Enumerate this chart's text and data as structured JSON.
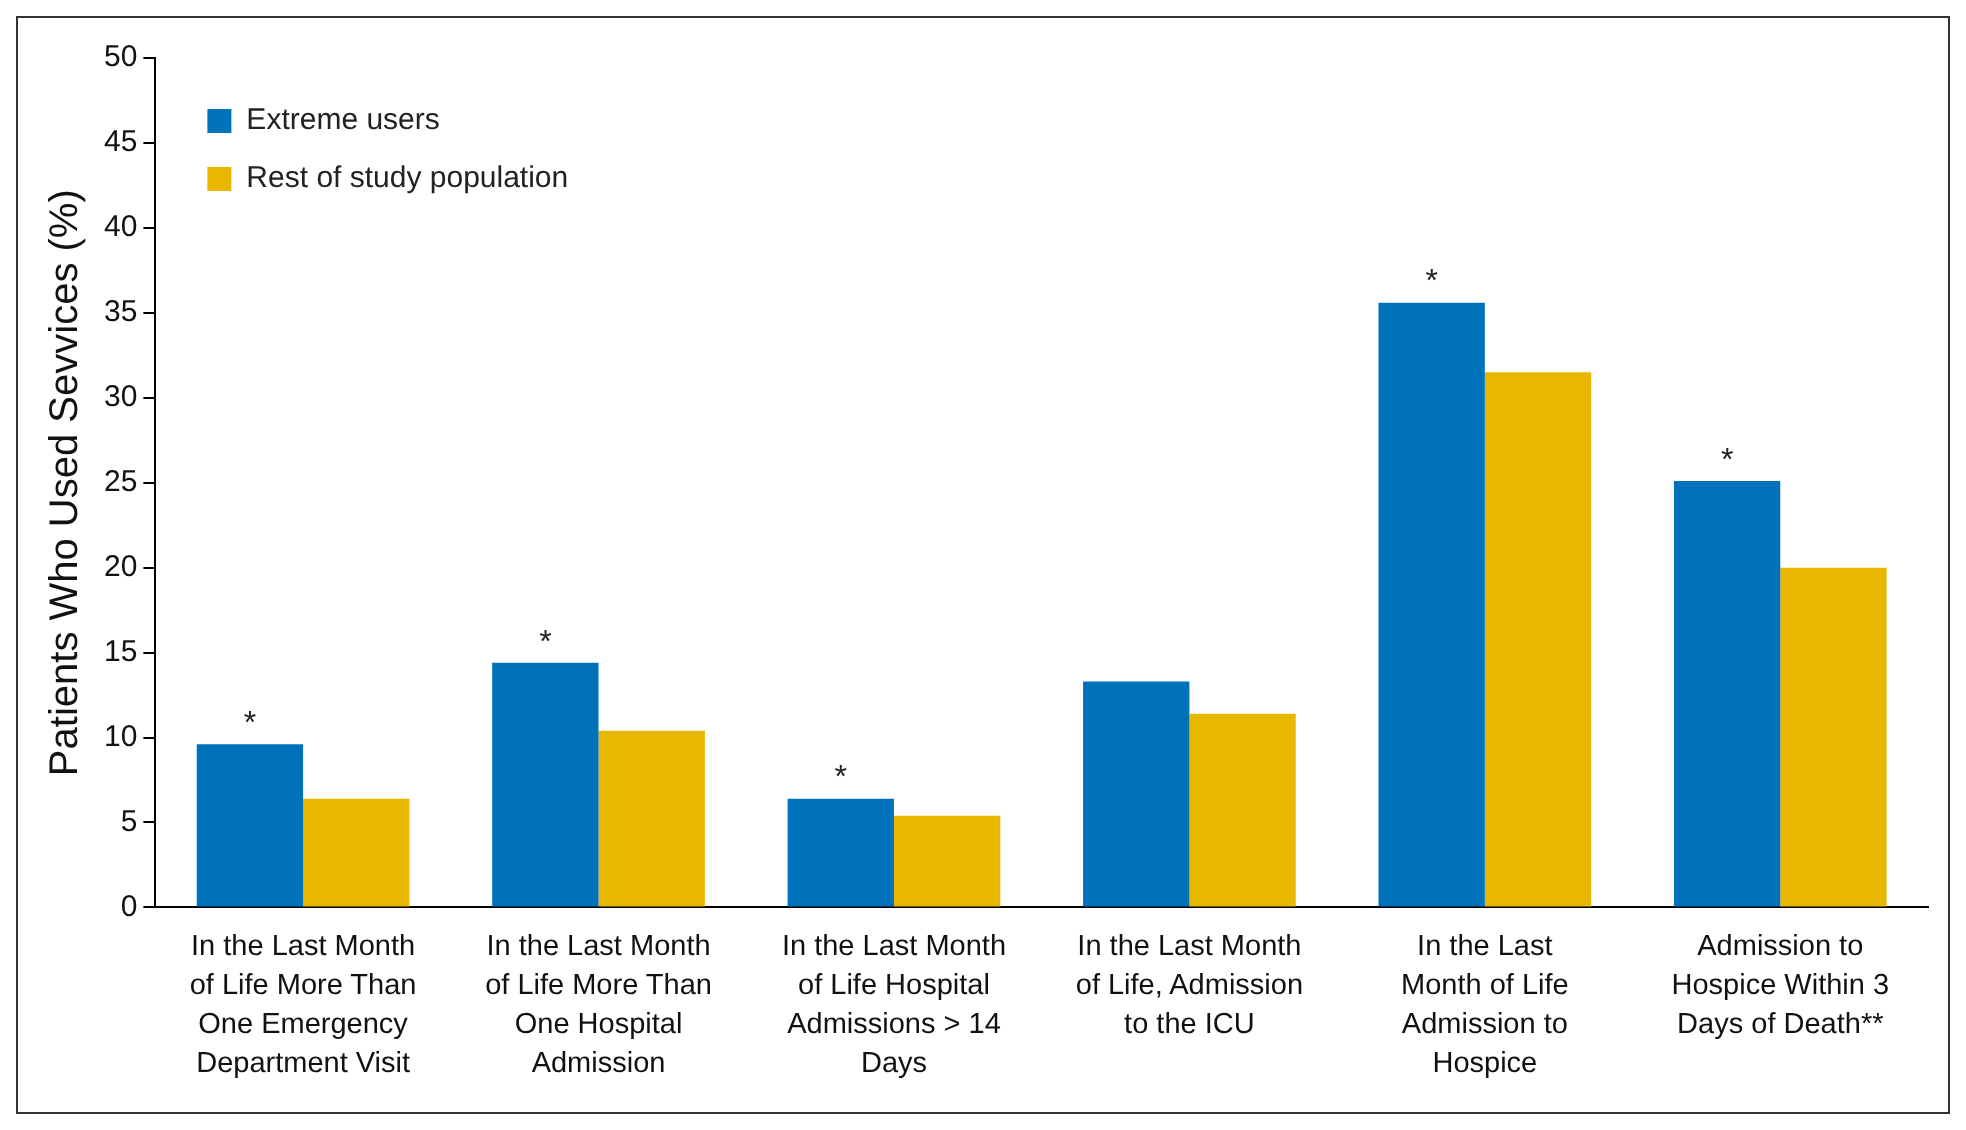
{
  "chart_data": {
    "type": "bar",
    "ylabel": "Patients Who Used Sevvices (%)",
    "categories": [
      "In the Last Month of Life More Than One Emergency Department Visit",
      "In the Last Month of Life More Than One Hospital Admission",
      "In the Last Month of Life Hospital Admissions > 14 Days",
      "In the Last Month of Life, Admission to the ICU",
      "In the Last Month of Life Admission to Hospice",
      "Admission to Hospice Within 3 Days of Death**"
    ],
    "series": [
      {
        "name": "Extreme users",
        "color": "#0072bc",
        "values": [
          9.6,
          14.4,
          6.4,
          13.3,
          35.6,
          25.1
        ]
      },
      {
        "name": "Rest of study population",
        "color": "#e8b800",
        "values": [
          6.4,
          10.4,
          5.4,
          11.4,
          31.5,
          20.0
        ]
      }
    ],
    "ylim": [
      0,
      50
    ],
    "yticks": [
      0,
      5,
      10,
      15,
      20,
      25,
      30,
      35,
      40,
      45,
      50
    ],
    "grid": false,
    "legend": "top left",
    "annotations": [
      {
        "text": "*",
        "x": "In the Last Month of Life More Than One Emergency Department Visit",
        "y": 9.6
      },
      {
        "text": "*",
        "x": "In the Last Month of Life More Than One Hospital Admission",
        "y": 14.4
      },
      {
        "text": "*",
        "x": "In the Last Month of Life Hospital Admissions > 14 Days",
        "y": 6.4
      },
      {
        "text": "*",
        "x": "In the Last Month of Life Admission to Hospice",
        "y": 35.6
      },
      {
        "text": "*",
        "x": "Admission to Hospice Within 3 Days of Death**",
        "y": 25.1
      }
    ]
  }
}
